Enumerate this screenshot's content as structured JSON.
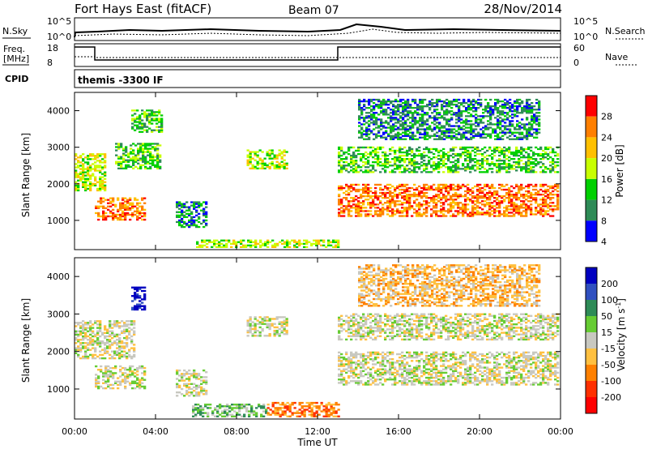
{
  "header": {
    "station": "Fort Hays East (fitACF)",
    "beam": "Beam 07",
    "date": "28/Nov/2014"
  },
  "panels": {
    "nsky": {
      "left_label": "N.Sky",
      "right_label": "N.Search",
      "left_ticks": [
        "10^5",
        "10^0"
      ],
      "right_ticks": [
        "10^5",
        "10^0"
      ]
    },
    "freq": {
      "left_label_line1": "Freq.",
      "left_label_line2": "[MHz]",
      "right_label": "Nave",
      "left_ticks": [
        "18",
        "8"
      ],
      "right_ticks": [
        "60",
        "0"
      ]
    },
    "cpid": {
      "label": "CPID",
      "value": "themis -3300 IF"
    }
  },
  "x_axis": {
    "label": "Time UT",
    "ticks": [
      "00:00",
      "04:00",
      "08:00",
      "12:00",
      "16:00",
      "20:00",
      "00:00"
    ]
  },
  "chart_data": [
    {
      "type": "heatmap",
      "name": "power",
      "ylabel": "Slant Range [km]",
      "yticks": [
        1000,
        2000,
        3000,
        4000
      ],
      "ylim": [
        200,
        4500
      ],
      "xlim_hours": [
        0,
        24
      ],
      "colorbar": {
        "label": "Power [dB]",
        "ticks": [
          "28",
          "24",
          "20",
          "16",
          "12",
          "8",
          "4"
        ],
        "colors": [
          "#ff0000",
          "#ff7f00",
          "#ffc000",
          "#c8ff00",
          "#00d000",
          "#2e8b57",
          "#0000ff"
        ]
      },
      "regions": [
        {
          "t": [
            0.0,
            1.5
          ],
          "r": [
            1800,
            2800
          ],
          "level": 3
        },
        {
          "t": [
            1.0,
            3.5
          ],
          "r": [
            1000,
            1600
          ],
          "level": 1
        },
        {
          "t": [
            2.0,
            4.2
          ],
          "r": [
            2400,
            3100
          ],
          "level": 4
        },
        {
          "t": [
            2.8,
            4.3
          ],
          "r": [
            3400,
            4000
          ],
          "level": 4
        },
        {
          "t": [
            5.0,
            6.5
          ],
          "r": [
            800,
            1500
          ],
          "level": 5
        },
        {
          "t": [
            6.0,
            13.0
          ],
          "r": [
            250,
            450
          ],
          "level": 3
        },
        {
          "t": [
            8.5,
            10.5
          ],
          "r": [
            2400,
            2900
          ],
          "level": 3
        },
        {
          "t": [
            13.0,
            23.9
          ],
          "r": [
            1100,
            2000
          ],
          "level": 1
        },
        {
          "t": [
            13.0,
            23.9
          ],
          "r": [
            2300,
            3000
          ],
          "level": 4
        },
        {
          "t": [
            14.0,
            23.0
          ],
          "r": [
            3200,
            4300
          ],
          "level": 5
        }
      ]
    },
    {
      "type": "heatmap",
      "name": "velocity",
      "ylabel": "Slant Range [km]",
      "yticks": [
        1000,
        2000,
        3000,
        4000
      ],
      "ylim": [
        200,
        4500
      ],
      "xlim_hours": [
        0,
        24
      ],
      "colorbar": {
        "label_main": "Velocity [m s",
        "label_sup": "-1",
        "label_end": "]",
        "ticks": [
          "200",
          "100",
          "50",
          "15",
          "-15",
          "-50",
          "-100",
          "-200"
        ],
        "colors": [
          "#0000c0",
          "#3050c0",
          "#2e8b57",
          "#66cc33",
          "#c8c8c0",
          "#ffc040",
          "#ff8000",
          "#ff3000",
          "#ff0000"
        ]
      },
      "regions": [
        {
          "t": [
            0.0,
            3.0
          ],
          "r": [
            1800,
            2800
          ],
          "level": 4
        },
        {
          "t": [
            1.0,
            3.5
          ],
          "r": [
            1000,
            1600
          ],
          "level": 4
        },
        {
          "t": [
            2.8,
            3.5
          ],
          "r": [
            3100,
            3700
          ],
          "level": 0
        },
        {
          "t": [
            5.0,
            6.5
          ],
          "r": [
            800,
            1500
          ],
          "level": 4
        },
        {
          "t": [
            5.8,
            9.5
          ],
          "r": [
            250,
            600
          ],
          "level": 3
        },
        {
          "t": [
            9.5,
            13.0
          ],
          "r": [
            250,
            650
          ],
          "level": 6
        },
        {
          "t": [
            8.5,
            10.5
          ],
          "r": [
            2400,
            2900
          ],
          "level": 4
        },
        {
          "t": [
            13.0,
            23.9
          ],
          "r": [
            1100,
            2000
          ],
          "level": 4
        },
        {
          "t": [
            13.0,
            23.9
          ],
          "r": [
            2300,
            3000
          ],
          "level": 4
        },
        {
          "t": [
            14.0,
            23.0
          ],
          "r": [
            3200,
            4300
          ],
          "level": 5
        }
      ]
    }
  ]
}
